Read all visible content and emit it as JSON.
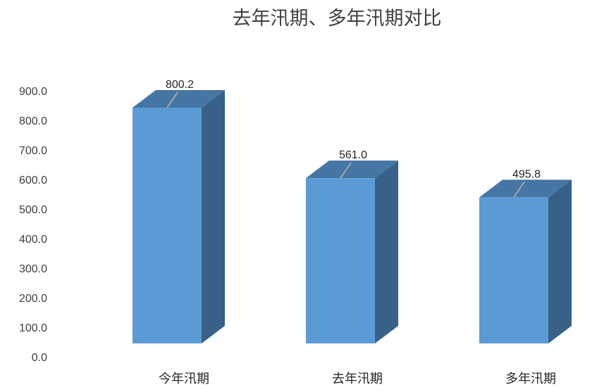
{
  "chart_data": {
    "type": "bar",
    "style": "3d-column",
    "title": "去年汛期、多年汛期对比",
    "categories": [
      "今年汛期",
      "去年汛期",
      "多年汛期"
    ],
    "values": [
      800.2,
      561.0,
      495.8
    ],
    "data_labels": [
      "800.2",
      "561.0",
      "495.8"
    ],
    "ylim": [
      0,
      900
    ],
    "yticks": [
      "0.0",
      "100.0",
      "200.0",
      "300.0",
      "400.0",
      "500.0",
      "600.0",
      "700.0",
      "800.0",
      "900.0"
    ],
    "grid": false,
    "legend": "none",
    "colors": {
      "front": "#5B9BD5",
      "top": "#4676A3",
      "side": "#376189",
      "leader": "#A6A6A6"
    }
  }
}
